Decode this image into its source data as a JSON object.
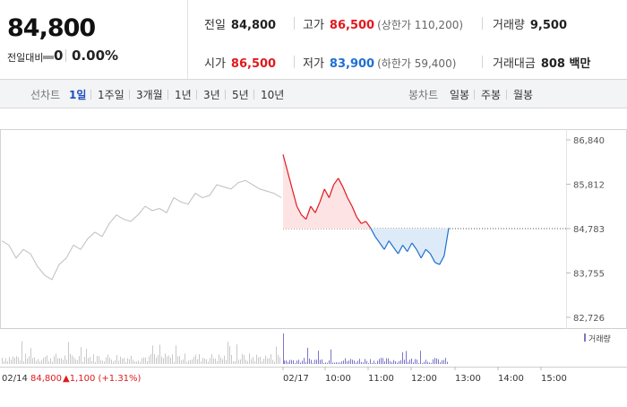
{
  "summary": {
    "current_price": "84,800",
    "change_label": "전일대비",
    "change_value": "0",
    "change_rate": "0.00%",
    "stats": [
      {
        "label": "전일",
        "value": "84,800",
        "paren": "",
        "tone": ""
      },
      {
        "label": "고가",
        "value": "86,500",
        "paren": "(상한가 110,200)",
        "tone": "up"
      },
      {
        "label": "거래량",
        "value": "9,500",
        "paren": "",
        "tone": ""
      },
      {
        "label": "시가",
        "value": "86,500",
        "paren": "",
        "tone": "up"
      },
      {
        "label": "저가",
        "value": "83,900",
        "paren": "(하한가 59,400)",
        "tone": "down"
      },
      {
        "label": "거래대금",
        "value": "808 백만",
        "paren": "",
        "tone": ""
      }
    ]
  },
  "toolbar": {
    "line_label": "선차트",
    "line_tabs": [
      "1일",
      "1주일",
      "3개월",
      "1년",
      "3년",
      "5년",
      "10년"
    ],
    "active_tab": "1일",
    "candle_label": "봉차트",
    "candle_tabs": [
      "일봉",
      "주봉",
      "월봉"
    ]
  },
  "colors": {
    "up": "#e0191e",
    "down": "#1f6fd1",
    "prev_day": "#bdbdbd",
    "up_fill": "#fde3e4",
    "down_fill": "#ddeaf8",
    "volume_prev": "#c8c8c8",
    "volume_today": "#7b76c9"
  },
  "chart_data": {
    "type": "line",
    "ylim": [
      82726,
      86840
    ],
    "yticks": [
      "86,840",
      "85,812",
      "84,783",
      "83,755",
      "82,726"
    ],
    "ytick_values": [
      86840,
      85812,
      84783,
      83755,
      82726
    ],
    "reference_line": 84783,
    "x_tick_labels": [
      "02/17",
      "10:00",
      "11:00",
      "12:00",
      "13:00",
      "14:00",
      "15:00"
    ],
    "prev_day_label": "02/14",
    "prev_day_close": "84,800",
    "prev_day_change": "▲1,100 (+1.31%)",
    "volume_legend": "거래량",
    "prev_day_series": [
      84500,
      84400,
      84100,
      84300,
      84200,
      83900,
      83700,
      83600,
      83950,
      84100,
      84400,
      84300,
      84550,
      84700,
      84600,
      84900,
      85100,
      85000,
      84950,
      85100,
      85300,
      85200,
      85250,
      85150,
      85500,
      85400,
      85350,
      85600,
      85500,
      85550,
      85800,
      85750,
      85700,
      85850,
      85900,
      85800,
      85700,
      85650,
      85600,
      85500
    ],
    "today_series": [
      86500,
      86100,
      85700,
      85300,
      85100,
      85000,
      85300,
      85150,
      85400,
      85700,
      85500,
      85800,
      85950,
      85750,
      85500,
      85300,
      85050,
      84900,
      84950,
      84800,
      84600,
      84450,
      84300,
      84500,
      84350,
      84200,
      84400,
      84250,
      84450,
      84300,
      84100,
      84300,
      84200,
      84000,
      83950,
      84150,
      84800
    ]
  }
}
